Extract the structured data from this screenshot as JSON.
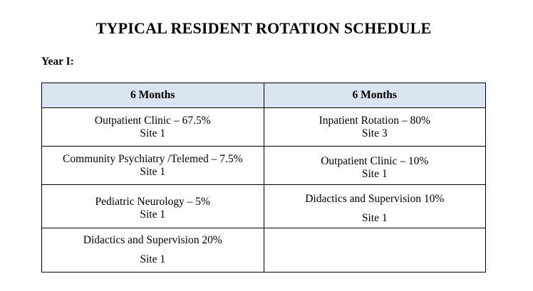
{
  "title": "TYPICAL RESIDENT ROTATION SCHEDULE",
  "year_label": "Year I:",
  "table": {
    "headers": [
      "6 Months",
      "6 Months"
    ],
    "rows": [
      [
        {
          "line1": "Outpatient Clinic – 67.5%",
          "line2": "Site 1"
        },
        {
          "line1": "Inpatient Rotation – 80%",
          "line2": "Site 3"
        }
      ],
      [
        {
          "line1": "Community Psychiatry /Telemed – 7.5%",
          "line2": "Site 1"
        },
        {
          "line1": "Outpatient Clinic – 10%",
          "line2": "Site 1"
        }
      ],
      [
        {
          "line1": "Pediatric Neurology – 5%",
          "line2": "Site 1"
        },
        {
          "line1": "Didactics and Supervision 10%",
          "line2": "Site 1"
        }
      ],
      [
        {
          "line1": "Didactics and Supervision 20%",
          "line2": "Site 1"
        },
        {
          "line1": "",
          "line2": ""
        }
      ]
    ]
  },
  "colors": {
    "header_background": "#dbe5f1",
    "border": "#000000"
  }
}
